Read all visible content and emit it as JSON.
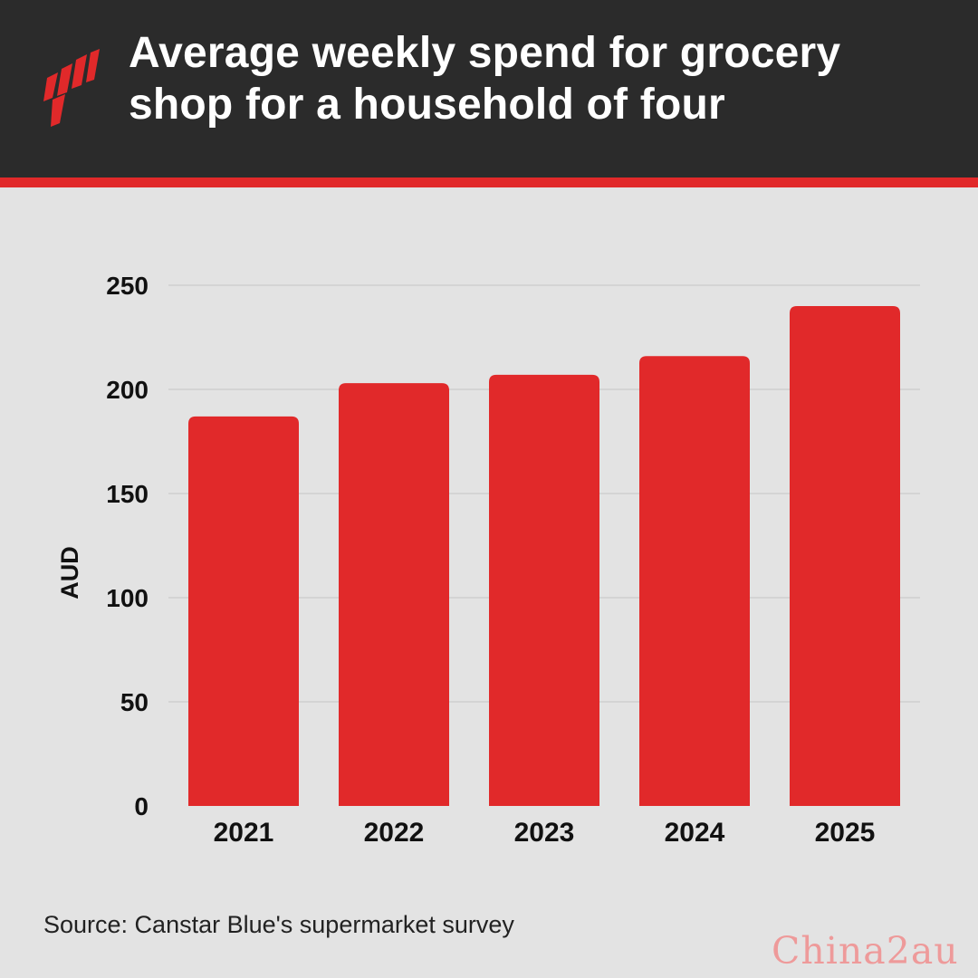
{
  "header": {
    "title_line1": "Average weekly spend for grocery",
    "title_line2": "shop for a household of four",
    "logo_icon": "sbs-logo-icon"
  },
  "colors": {
    "header_bg": "#2b2b2b",
    "accent": "#e1292a",
    "background": "#e3e3e3",
    "gridline": "#c4c4c4"
  },
  "chart_data": {
    "type": "bar",
    "categories": [
      "2021",
      "2022",
      "2023",
      "2024",
      "2025"
    ],
    "values": [
      187,
      203,
      207,
      216,
      240
    ],
    "ylabel": "AUD",
    "xlabel": "",
    "ylim": [
      0,
      250
    ],
    "yticks": [
      0,
      50,
      100,
      150,
      200,
      250
    ],
    "grid": true,
    "bar_color": "#e1292a"
  },
  "footer": {
    "source": "Source: Canstar Blue's supermarket survey",
    "watermark": "China2au"
  }
}
